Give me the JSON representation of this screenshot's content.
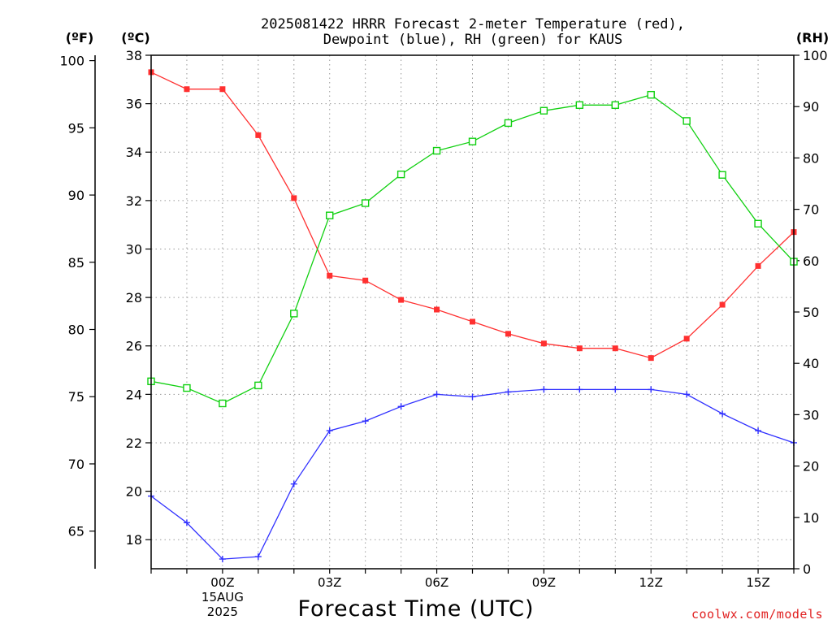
{
  "chart_data": {
    "type": "line",
    "title": "2025081422 HRRR Forecast 2-meter Temperature (red),",
    "subtitle": "Dewpoint (blue), RH (green) for KAUS",
    "xlabel": "Forecast Time (UTC)",
    "credit": "coolwx.com/models",
    "units": {
      "fahrenheit": "(ºF)",
      "celsius": "(ºC)",
      "rh": "(RH)"
    },
    "x": [
      "22Z",
      "23Z",
      "00Z",
      "01Z",
      "02Z",
      "03Z",
      "04Z",
      "05Z",
      "06Z",
      "07Z",
      "08Z",
      "09Z",
      "10Z",
      "11Z",
      "12Z",
      "13Z",
      "14Z",
      "15Z",
      "16Z"
    ],
    "x_tick_labels": [
      {
        "at": "00Z",
        "lines": [
          "00Z",
          "15AUG",
          "2025"
        ]
      },
      {
        "at": "03Z",
        "lines": [
          "03Z"
        ]
      },
      {
        "at": "06Z",
        "lines": [
          "06Z"
        ]
      },
      {
        "at": "09Z",
        "lines": [
          "09Z"
        ]
      },
      {
        "at": "12Z",
        "lines": [
          "12Z"
        ]
      },
      {
        "at": "15Z",
        "lines": [
          "15Z"
        ]
      }
    ],
    "celsius_axis": {
      "range": [
        16.8,
        38.0
      ],
      "ticks": [
        18,
        20,
        22,
        24,
        26,
        28,
        30,
        32,
        34,
        36,
        38
      ]
    },
    "fahrenheit_axis": {
      "range": [
        62.2,
        100.4
      ],
      "ticks": [
        65,
        70,
        75,
        80,
        85,
        90,
        95,
        100
      ]
    },
    "rh_axis": {
      "range": [
        0,
        100
      ],
      "ticks": [
        0,
        10,
        20,
        30,
        40,
        50,
        60,
        70,
        80,
        90,
        100
      ]
    },
    "grid": true,
    "series": [
      {
        "name": "Temperature",
        "color": "#ff3030",
        "marker": "filled-square",
        "axis": "celsius",
        "values": [
          37.3,
          36.6,
          36.6,
          34.7,
          32.1,
          28.9,
          28.7,
          27.9,
          27.5,
          27.0,
          26.5,
          26.1,
          25.9,
          25.9,
          25.5,
          26.3,
          27.7,
          29.3,
          30.7
        ]
      },
      {
        "name": "Dewpoint",
        "color": "#3030ff",
        "marker": "plus",
        "axis": "celsius",
        "values": [
          19.8,
          18.7,
          17.2,
          17.3,
          20.3,
          22.5,
          22.9,
          23.5,
          24.0,
          23.9,
          24.1,
          24.2,
          24.2,
          24.2,
          24.2,
          24.0,
          23.2,
          22.5,
          22.0
        ]
      },
      {
        "name": "RH",
        "color": "#10d010",
        "marker": "open-square",
        "axis": "rh",
        "values": [
          36.5,
          35.2,
          32.2,
          35.7,
          49.7,
          68.8,
          71.2,
          76.8,
          81.4,
          83.2,
          86.8,
          89.2,
          90.3,
          90.3,
          92.3,
          87.2,
          76.7,
          67.2,
          59.8
        ]
      }
    ]
  }
}
